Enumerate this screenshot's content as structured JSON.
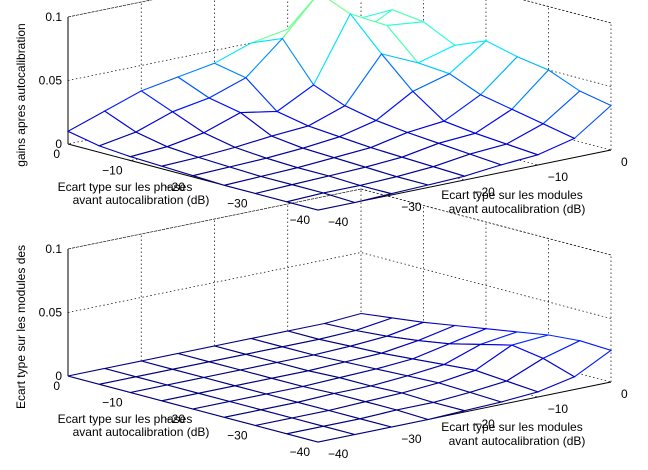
{
  "chart_data": [
    {
      "type": "surface",
      "zlabel": "gains apres autocalibration",
      "xlabel": [
        "Ecart type sur les phases",
        "avant autocalibration (dB)"
      ],
      "ylabel": [
        "Ecart type sur les modules",
        "avant autocalibration (dB)"
      ],
      "x_ticks": [
        "0",
        "-10",
        "-20",
        "-30",
        "-40"
      ],
      "y_ticks": [
        "0",
        "-10",
        "-20",
        "-30",
        "-40"
      ],
      "z_ticks": [
        "0",
        "0.05",
        "0.1"
      ],
      "xlim": [
        -40,
        0
      ],
      "ylim": [
        -40,
        0
      ],
      "zlim": [
        0,
        0.1
      ],
      "grid": true,
      "x": [
        0,
        -5,
        -10,
        -15,
        -20,
        -25,
        -30,
        -35,
        -40
      ],
      "y": [
        0,
        -5,
        -10,
        -15,
        -20,
        -25,
        -30,
        -35,
        -40
      ],
      "z": [
        [
          0.052,
          0.065,
          0.062,
          0.05,
          0.06,
          0.054,
          0.05,
          0.04,
          0.035
        ],
        [
          0.05,
          0.05,
          0.065,
          0.042,
          0.04,
          0.03,
          0.025,
          0.02,
          0.015
        ],
        [
          0.055,
          0.09,
          0.08,
          0.055,
          0.032,
          0.015,
          0.012,
          0.01,
          0.008
        ],
        [
          0.05,
          0.06,
          0.03,
          0.02,
          0.015,
          0.012,
          0.01,
          0.008,
          0.006
        ],
        [
          0.04,
          0.035,
          0.015,
          0.01,
          0.008,
          0.006,
          0.005,
          0.004,
          0.003
        ],
        [
          0.035,
          0.025,
          0.02,
          0.008,
          0.005,
          0.004,
          0.003,
          0.002,
          0.002
        ],
        [
          0.03,
          0.02,
          0.01,
          0.005,
          0.003,
          0.002,
          0.002,
          0.001,
          0.001
        ],
        [
          0.02,
          0.01,
          0.005,
          0.003,
          0.002,
          0.001,
          0.001,
          0.001,
          0.0
        ],
        [
          0.01,
          0.005,
          0.003,
          0.002,
          0.001,
          0.0,
          0.0,
          0.0,
          0.0
        ]
      ]
    },
    {
      "type": "surface",
      "zlabel": "Ecart type sur les modules des",
      "xlabel": [
        "Ecart type sur les phases",
        "avant autocalibration (dB)"
      ],
      "ylabel": [
        "Ecart type sur les modules",
        "avant autocalibration (dB)"
      ],
      "x_ticks": [
        "0",
        "-10",
        "-20",
        "-30",
        "-40"
      ],
      "y_ticks": [
        "0",
        "-10",
        "-20",
        "-30",
        "-40"
      ],
      "z_ticks": [
        "0",
        "0.05",
        "0.1"
      ],
      "xlim": [
        -40,
        0
      ],
      "ylim": [
        -40,
        0
      ],
      "zlim": [
        0,
        0.1
      ],
      "grid": true,
      "x": [
        0,
        -5,
        -10,
        -15,
        -20,
        -25,
        -30,
        -35,
        -40
      ],
      "y": [
        0,
        -5,
        -10,
        -15,
        -20,
        -25,
        -30,
        -35,
        -40
      ],
      "z": [
        [
          0.002,
          0.005,
          0.008,
          0.012,
          0.016,
          0.02,
          0.024,
          0.026,
          0.025
        ],
        [
          0.0,
          0.001,
          0.003,
          0.006,
          0.01,
          0.016,
          0.022,
          0.018,
          0.01
        ],
        [
          0.0,
          0.0,
          0.001,
          0.002,
          0.004,
          0.006,
          0.008,
          0.006,
          0.004
        ],
        [
          0.0,
          0.0,
          0.0,
          0.001,
          0.002,
          0.003,
          0.004,
          0.003,
          0.002
        ],
        [
          0.0,
          0.0,
          0.0,
          0.0,
          0.001,
          0.001,
          0.002,
          0.001,
          0.001
        ],
        [
          0.0,
          0.0,
          0.0,
          0.0,
          0.0,
          0.001,
          0.001,
          0.001,
          0.0
        ],
        [
          0.0,
          0.0,
          0.0,
          0.0,
          0.0,
          0.0,
          0.0,
          0.0,
          0.0
        ],
        [
          0.0,
          0.0,
          0.0,
          0.0,
          0.0,
          0.0,
          0.0,
          0.0,
          0.0
        ],
        [
          0.0,
          0.0,
          0.0,
          0.0,
          0.0,
          0.0,
          0.0,
          0.0,
          0.0
        ]
      ]
    }
  ]
}
